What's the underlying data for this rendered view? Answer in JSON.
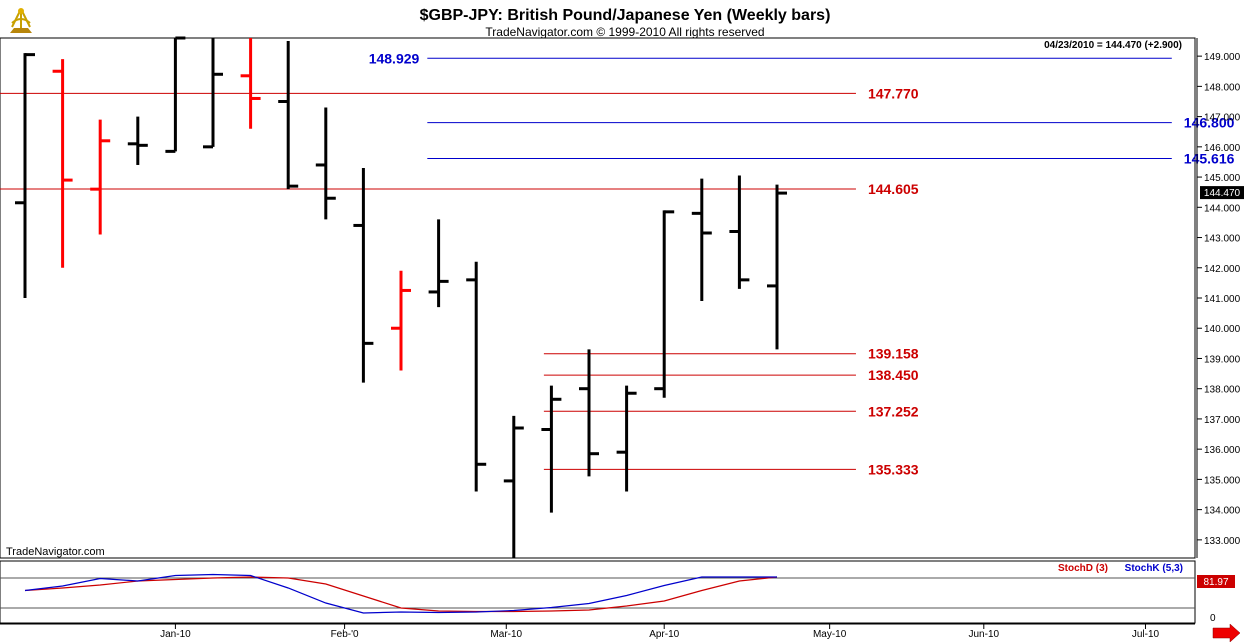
{
  "header": {
    "title": "$GBP-JPY:  British Pound/Japanese Yen  (Weekly bars)",
    "copyright": "TradeNavigator.com © 1999-2010 All rights reserved",
    "quote": "04/23/2010 = 144.470 (+2.900)",
    "watermark": "TradeNavigator.com",
    "logo_icon": "sextant-icon"
  },
  "colors": {
    "up": "#000000",
    "down": "#ff0000",
    "blue_line": "#0000cc",
    "red_line": "#cc0000",
    "stoch_d": "#cc0000",
    "stoch_k": "#0000cc"
  },
  "chart_data": {
    "type": "ohlc",
    "ylim": [
      132.4,
      149.6
    ],
    "y_ticks": [
      "149.000",
      "148.000",
      "147.000",
      "146.000",
      "145.000",
      "144.000",
      "143.000",
      "142.000",
      "141.000",
      "140.000",
      "139.000",
      "138.000",
      "137.000",
      "136.000",
      "135.000",
      "134.000",
      "133.000"
    ],
    "x_ticks": [
      "Jan-10",
      "Feb-'0",
      "Mar-10",
      "Apr-10",
      "May-10",
      "Jun-10",
      "Jul-10"
    ],
    "x_tick_index": [
      4,
      8.5,
      12.8,
      17,
      21.4,
      25.5,
      29.8
    ],
    "x_range": [
      -0.5,
      32.5
    ],
    "last_price": "144.470",
    "bars": [
      {
        "o": 144.15,
        "h": 149.1,
        "l": 141.0,
        "c": 149.05,
        "color": "up"
      },
      {
        "o": 148.5,
        "h": 148.9,
        "l": 142.0,
        "c": 144.9,
        "color": "down"
      },
      {
        "o": 144.6,
        "h": 146.9,
        "l": 143.1,
        "c": 146.2,
        "color": "down"
      },
      {
        "o": 146.1,
        "h": 147.0,
        "l": 145.4,
        "c": 146.05,
        "color": "up"
      },
      {
        "o": 145.85,
        "h": 149.6,
        "l": 145.85,
        "c": 149.6,
        "color": "up"
      },
      {
        "o": 146.0,
        "h": 149.6,
        "l": 146.0,
        "c": 148.4,
        "color": "up"
      },
      {
        "o": 148.35,
        "h": 149.6,
        "l": 146.6,
        "c": 147.6,
        "color": "down"
      },
      {
        "o": 147.5,
        "h": 149.5,
        "l": 144.6,
        "c": 144.7,
        "color": "up"
      },
      {
        "o": 145.4,
        "h": 147.3,
        "l": 143.6,
        "c": 144.3,
        "color": "up"
      },
      {
        "o": 143.4,
        "h": 145.3,
        "l": 138.2,
        "c": 139.5,
        "color": "up"
      },
      {
        "o": 140.0,
        "h": 141.9,
        "l": 138.6,
        "c": 141.25,
        "color": "down"
      },
      {
        "o": 141.2,
        "h": 143.6,
        "l": 140.7,
        "c": 141.55,
        "color": "up"
      },
      {
        "o": 141.6,
        "h": 142.2,
        "l": 134.6,
        "c": 135.5,
        "color": "up"
      },
      {
        "o": 134.95,
        "h": 137.1,
        "l": 132.4,
        "c": 136.7,
        "color": "up"
      },
      {
        "o": 136.65,
        "h": 138.1,
        "l": 133.9,
        "c": 137.65,
        "color": "up"
      },
      {
        "o": 138.0,
        "h": 139.3,
        "l": 135.1,
        "c": 135.85,
        "color": "up"
      },
      {
        "o": 135.9,
        "h": 138.1,
        "l": 134.6,
        "c": 137.85,
        "color": "up"
      },
      {
        "o": 138.0,
        "h": 143.9,
        "l": 137.7,
        "c": 143.85,
        "color": "up"
      },
      {
        "o": 143.8,
        "h": 144.95,
        "l": 140.9,
        "c": 143.15,
        "color": "up"
      },
      {
        "o": 143.2,
        "h": 145.05,
        "l": 141.3,
        "c": 141.6,
        "color": "up"
      },
      {
        "o": 141.4,
        "h": 144.75,
        "l": 139.3,
        "c": 144.47,
        "color": "up"
      }
    ],
    "levels": [
      {
        "value": 148.929,
        "label": "148.929",
        "color": "blue",
        "x_from": 10.7,
        "x_to": 30.5,
        "label_pos": "left"
      },
      {
        "value": 147.77,
        "label": "147.770",
        "color": "red",
        "x_from": -0.5,
        "x_to": 22.1,
        "label_pos": "right"
      },
      {
        "value": 146.8,
        "label": "146.800",
        "color": "blue",
        "x_from": 10.7,
        "x_to": 30.5,
        "label_pos": "right"
      },
      {
        "value": 145.616,
        "label": "145.616",
        "color": "blue",
        "x_from": 10.7,
        "x_to": 30.5,
        "label_pos": "right"
      },
      {
        "value": 144.605,
        "label": "144.605",
        "color": "red",
        "x_from": -0.5,
        "x_to": 22.1,
        "label_pos": "right"
      },
      {
        "value": 139.158,
        "label": "139.158",
        "color": "red",
        "x_from": 13.8,
        "x_to": 22.1,
        "label_pos": "right"
      },
      {
        "value": 138.45,
        "label": "138.450",
        "color": "red",
        "x_from": 13.8,
        "x_to": 22.1,
        "label_pos": "right"
      },
      {
        "value": 137.252,
        "label": "137.252",
        "color": "red",
        "x_from": 13.8,
        "x_to": 22.1,
        "label_pos": "right"
      },
      {
        "value": 135.333,
        "label": "135.333",
        "color": "red",
        "x_from": 13.8,
        "x_to": 22.1,
        "label_pos": "right"
      }
    ],
    "stochastic": {
      "legend_d": "StochD (3)",
      "legend_k": "StochK (5,3)",
      "readout": "81.97",
      "axis_zero": "0",
      "ylim": [
        0,
        100
      ],
      "ref_lines": [
        80,
        20
      ],
      "stoch_d": [
        55,
        60,
        66,
        74,
        77,
        80,
        82,
        80,
        68,
        44,
        20,
        14,
        13,
        13,
        14,
        16,
        24,
        34,
        55,
        74,
        82
      ],
      "stoch_k": [
        55,
        64,
        79,
        74,
        85,
        87,
        85,
        60,
        30,
        10,
        12,
        11,
        12,
        15,
        21,
        29,
        45,
        65,
        82,
        82,
        82
      ]
    }
  }
}
